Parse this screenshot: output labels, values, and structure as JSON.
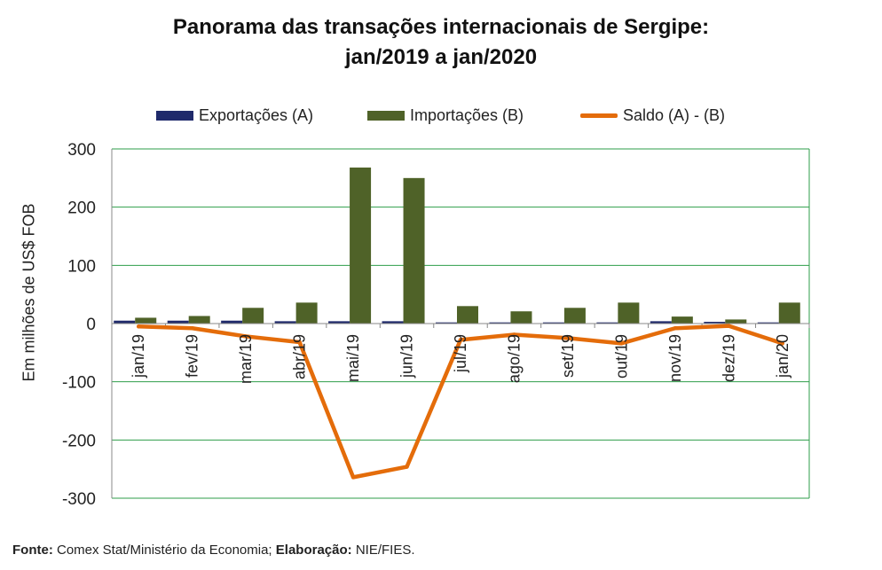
{
  "title_line1": "Panorama  das transações internacionais de Sergipe:",
  "title_line2": "jan/2019 a jan/2020",
  "footer": {
    "fonte_label": "Fonte:",
    "fonte_text": "Comex Stat/Ministério da Economia;",
    "elab_label": "Elaboração:",
    "elab_text": "NIE/FIES."
  },
  "colors": {
    "exports": "#1f2a6b",
    "imports": "#4f6228",
    "balance": "#e46c0a",
    "grid": "#2e9e4a"
  },
  "chart_data": {
    "type": "bar",
    "title": "Panorama  das transações internacionais de Sergipe: jan/2019 a jan/2020",
    "xlabel": "",
    "ylabel": "Em milhões de US$ FOB",
    "ylim": [
      -300,
      300
    ],
    "yticks": [
      300,
      200,
      100,
      0,
      -100,
      -200,
      -300
    ],
    "grid": true,
    "legend_position": "top",
    "categories": [
      "jan/19",
      "fev/19",
      "mar/19",
      "abr/19",
      "mai/19",
      "jun/19",
      "jul/19",
      "ago/19",
      "set/19",
      "out/19",
      "nov/19",
      "dez/19",
      "jan/20"
    ],
    "series": [
      {
        "name": "Exportações (A)",
        "type": "bar",
        "values": [
          5,
          5,
          5,
          4,
          4,
          4,
          2,
          2,
          2,
          2,
          4,
          3,
          2
        ]
      },
      {
        "name": "Importações (B)",
        "type": "bar",
        "values": [
          10,
          13,
          27,
          36,
          268,
          250,
          30,
          21,
          27,
          36,
          12,
          7,
          36
        ]
      },
      {
        "name": "Saldo (A) - (B)",
        "type": "line",
        "values": [
          -5,
          -8,
          -22,
          -32,
          -264,
          -246,
          -28,
          -19,
          -25,
          -34,
          -8,
          -4,
          -34
        ]
      }
    ]
  }
}
